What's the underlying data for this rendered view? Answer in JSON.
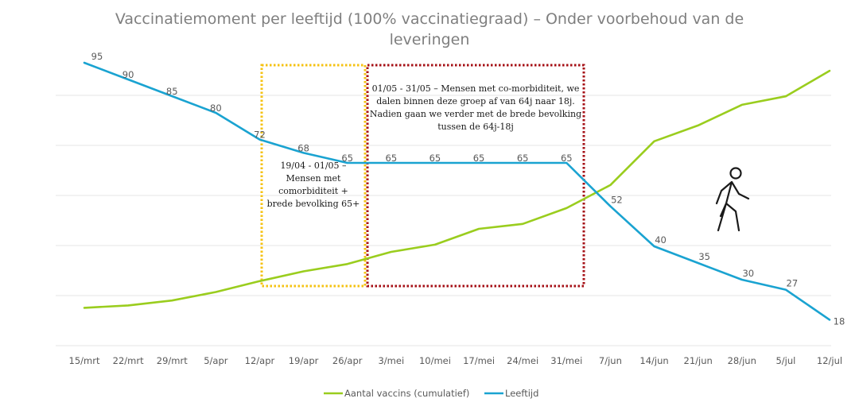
{
  "chart_data": {
    "type": "line",
    "title": "Vaccinatiemoment per leeftijd (100% vaccinatiegraad) – Onder voorbehoud van de leveringen",
    "title_lines": [
      "Vaccinatiemoment per leeftijd (100% vaccinatiegraad) – Onder voorbehoud van de",
      "leveringen"
    ],
    "categories": [
      "15/mrt",
      "22/mrt",
      "29/mrt",
      "5/apr",
      "12/apr",
      "19/apr",
      "26/apr",
      "3/mei",
      "10/mei",
      "17/mei",
      "24/mei",
      "31/mei",
      "7/jun",
      "14/jun",
      "21/jun",
      "28/jun",
      "5/jul",
      "12/jul"
    ],
    "series": [
      {
        "name": "Aantal vaccins (cumulatief)",
        "color": "#9acd1e",
        "relative_values": [
          3,
          5,
          9,
          16,
          25,
          33,
          39,
          49,
          55,
          68,
          72,
          85,
          104,
          140,
          153,
          170,
          177,
          198
        ],
        "labels_shown": false
      },
      {
        "name": "Leeftijd",
        "color": "#1aa3d1",
        "values": [
          95,
          90,
          85,
          80,
          72,
          68,
          65,
          65,
          65,
          65,
          65,
          65,
          52,
          40,
          35,
          30,
          27,
          18
        ],
        "labels_shown": true
      }
    ],
    "ylim": [
      10,
      100
    ],
    "grid": true,
    "legend_position": "bottom",
    "annotations": [
      {
        "name": "period-1",
        "from": "12/apr",
        "to": "26/apr",
        "border_color": "#f5c211",
        "border_style": "dotted",
        "lines": [
          "19/04  - 01/05 –",
          "Mensen met",
          "comorbiditeit +",
          "brede bevolking 65+"
        ]
      },
      {
        "name": "period-2",
        "from": "26/apr",
        "to": "31/mei",
        "border_color": "#a50f15",
        "border_style": "dotted",
        "lines": [
          "01/05  - 31/05 – Mensen met co-morbiditeit, we",
          "dalen binnen deze groep af van 64j naar 18j.",
          "Nadien gaan we verder met de brede bevolking",
          "tussen de 64j-18j"
        ]
      }
    ],
    "icon": "walking-person-icon"
  }
}
